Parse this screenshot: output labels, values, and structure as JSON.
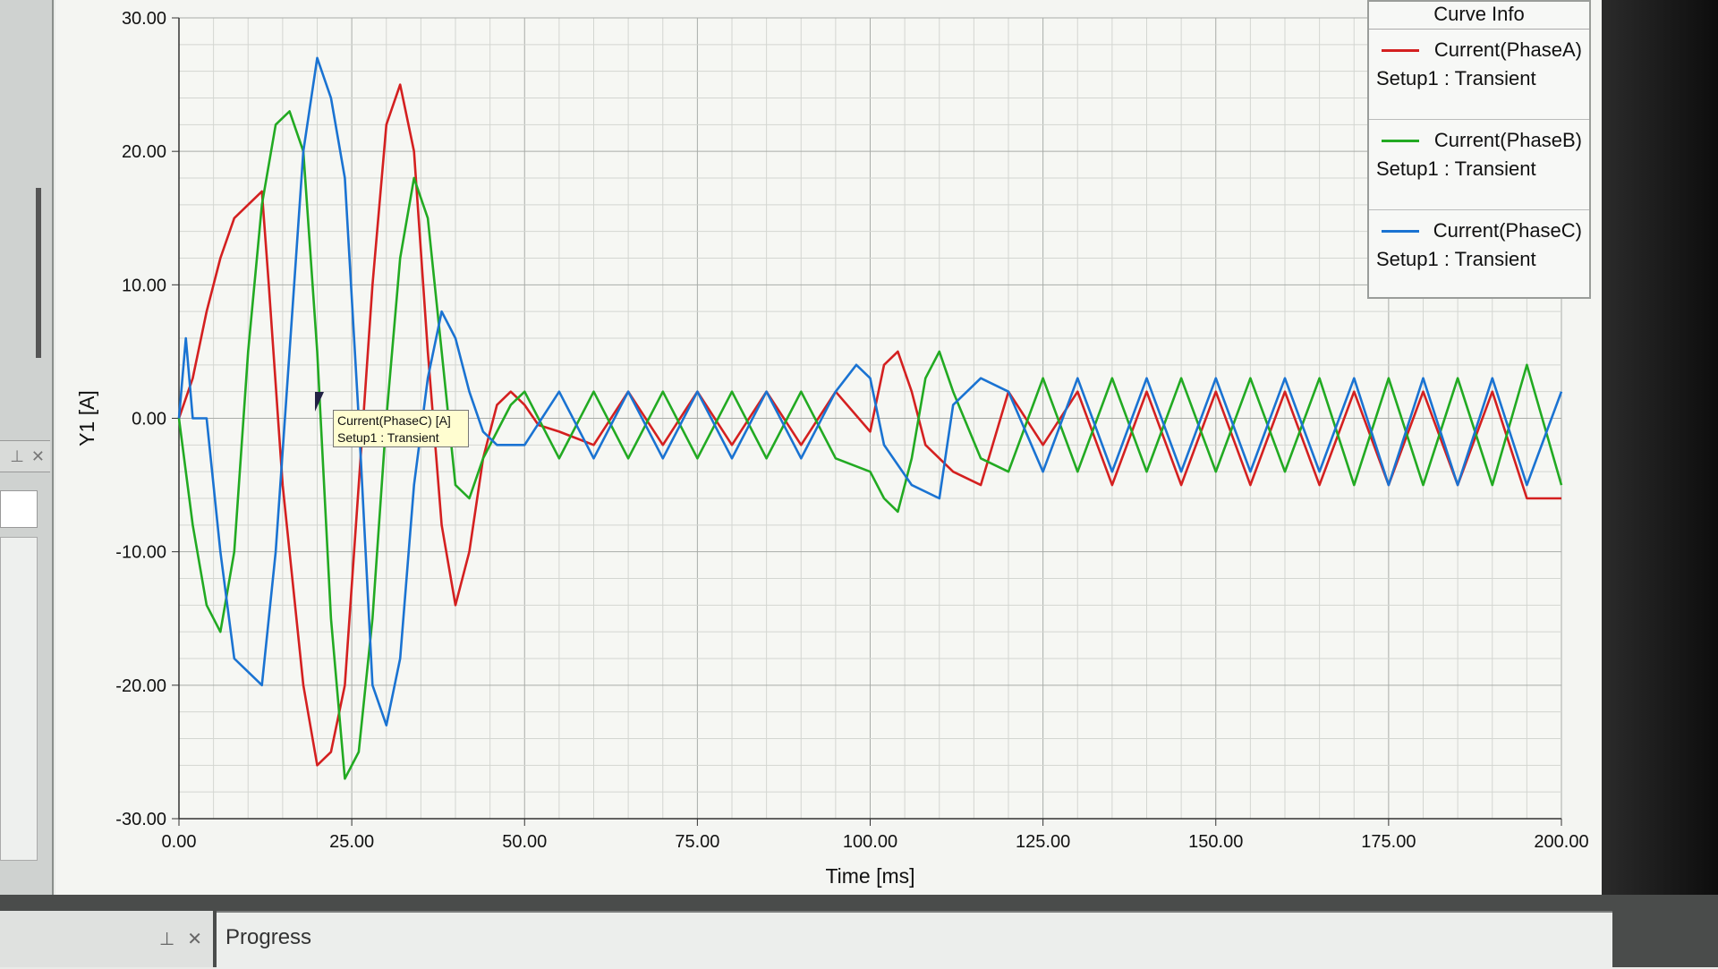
{
  "panel": {
    "progress_label": "Progress",
    "pin_icon": "pin-icon",
    "close_icon": "close-icon"
  },
  "chart_data": {
    "type": "line",
    "title": "",
    "xlabel": "Time [ms]",
    "ylabel": "Y1 [A]",
    "xlim": [
      0,
      200
    ],
    "ylim": [
      -30,
      30
    ],
    "x_ticks": [
      "0.00",
      "25.00",
      "50.00",
      "75.00",
      "100.00",
      "125.00",
      "150.00",
      "175.00",
      "200.00"
    ],
    "y_ticks": [
      "30.00",
      "20.00",
      "10.00",
      "0.00",
      "-10.00",
      "-20.00",
      "-30.00"
    ],
    "grid": true,
    "legend_position": "top-right",
    "legend_title": "Curve Info",
    "series": [
      {
        "name": "Current(PhaseA)",
        "subtitle": "Setup1 : Transient",
        "color": "#d42020",
        "points": [
          [
            0,
            0
          ],
          [
            2,
            3
          ],
          [
            4,
            8
          ],
          [
            6,
            12
          ],
          [
            8,
            15
          ],
          [
            10,
            16
          ],
          [
            12,
            17
          ],
          [
            13,
            10
          ],
          [
            15,
            -5
          ],
          [
            18,
            -20
          ],
          [
            20,
            -26
          ],
          [
            22,
            -25
          ],
          [
            24,
            -20
          ],
          [
            26,
            -5
          ],
          [
            28,
            10
          ],
          [
            30,
            22
          ],
          [
            32,
            25
          ],
          [
            34,
            20
          ],
          [
            36,
            5
          ],
          [
            38,
            -8
          ],
          [
            40,
            -14
          ],
          [
            42,
            -10
          ],
          [
            44,
            -3
          ],
          [
            46,
            1
          ],
          [
            48,
            2
          ],
          [
            50,
            1
          ],
          [
            52,
            -0.5
          ],
          [
            55,
            -1
          ],
          [
            60,
            -2
          ],
          [
            65,
            2
          ],
          [
            70,
            -2
          ],
          [
            75,
            2
          ],
          [
            80,
            -2
          ],
          [
            85,
            2
          ],
          [
            90,
            -2
          ],
          [
            95,
            2
          ],
          [
            100,
            -1
          ],
          [
            102,
            4
          ],
          [
            104,
            5
          ],
          [
            106,
            2
          ],
          [
            108,
            -2
          ],
          [
            112,
            -4
          ],
          [
            116,
            -5
          ],
          [
            120,
            2
          ],
          [
            125,
            -2
          ],
          [
            130,
            2
          ],
          [
            135,
            -5
          ],
          [
            140,
            2
          ],
          [
            145,
            -5
          ],
          [
            150,
            2
          ],
          [
            155,
            -5
          ],
          [
            160,
            2
          ],
          [
            165,
            -5
          ],
          [
            170,
            2
          ],
          [
            175,
            -5
          ],
          [
            180,
            2
          ],
          [
            185,
            -5
          ],
          [
            190,
            2
          ],
          [
            195,
            -6
          ],
          [
            200,
            -6
          ]
        ]
      },
      {
        "name": "Current(PhaseB)",
        "subtitle": "Setup1 : Transient",
        "color": "#22aa22",
        "points": [
          [
            0,
            0
          ],
          [
            2,
            -8
          ],
          [
            4,
            -14
          ],
          [
            6,
            -16
          ],
          [
            8,
            -10
          ],
          [
            10,
            5
          ],
          [
            12,
            16
          ],
          [
            14,
            22
          ],
          [
            16,
            23
          ],
          [
            18,
            20
          ],
          [
            20,
            5
          ],
          [
            22,
            -15
          ],
          [
            24,
            -27
          ],
          [
            26,
            -25
          ],
          [
            28,
            -15
          ],
          [
            30,
            0
          ],
          [
            32,
            12
          ],
          [
            34,
            18
          ],
          [
            36,
            15
          ],
          [
            38,
            5
          ],
          [
            40,
            -5
          ],
          [
            42,
            -6
          ],
          [
            44,
            -3
          ],
          [
            46,
            -1
          ],
          [
            48,
            1
          ],
          [
            50,
            2
          ],
          [
            55,
            -3
          ],
          [
            60,
            2
          ],
          [
            65,
            -3
          ],
          [
            70,
            2
          ],
          [
            75,
            -3
          ],
          [
            80,
            2
          ],
          [
            85,
            -3
          ],
          [
            90,
            2
          ],
          [
            95,
            -3
          ],
          [
            100,
            -4
          ],
          [
            102,
            -6
          ],
          [
            104,
            -7
          ],
          [
            106,
            -3
          ],
          [
            108,
            3
          ],
          [
            110,
            5
          ],
          [
            112,
            2
          ],
          [
            116,
            -3
          ],
          [
            120,
            -4
          ],
          [
            125,
            3
          ],
          [
            130,
            -4
          ],
          [
            135,
            3
          ],
          [
            140,
            -4
          ],
          [
            145,
            3
          ],
          [
            150,
            -4
          ],
          [
            155,
            3
          ],
          [
            160,
            -4
          ],
          [
            165,
            3
          ],
          [
            170,
            -5
          ],
          [
            175,
            3
          ],
          [
            180,
            -5
          ],
          [
            185,
            3
          ],
          [
            190,
            -5
          ],
          [
            195,
            4
          ],
          [
            200,
            -5
          ]
        ]
      },
      {
        "name": "Current(PhaseC)",
        "subtitle": "Setup1 : Transient",
        "color": "#1a73d2",
        "points": [
          [
            0,
            0
          ],
          [
            1,
            6
          ],
          [
            2,
            0
          ],
          [
            4,
            0
          ],
          [
            6,
            -10
          ],
          [
            8,
            -18
          ],
          [
            10,
            -19
          ],
          [
            12,
            -20
          ],
          [
            14,
            -10
          ],
          [
            16,
            5
          ],
          [
            18,
            20
          ],
          [
            20,
            27
          ],
          [
            22,
            24
          ],
          [
            24,
            18
          ],
          [
            26,
            0
          ],
          [
            28,
            -20
          ],
          [
            30,
            -23
          ],
          [
            32,
            -18
          ],
          [
            34,
            -5
          ],
          [
            36,
            3
          ],
          [
            38,
            8
          ],
          [
            40,
            6
          ],
          [
            42,
            2
          ],
          [
            44,
            -1
          ],
          [
            46,
            -2
          ],
          [
            48,
            -2
          ],
          [
            50,
            -2
          ],
          [
            55,
            2
          ],
          [
            60,
            -3
          ],
          [
            65,
            2
          ],
          [
            70,
            -3
          ],
          [
            75,
            2
          ],
          [
            80,
            -3
          ],
          [
            85,
            2
          ],
          [
            90,
            -3
          ],
          [
            95,
            2
          ],
          [
            98,
            4
          ],
          [
            100,
            3
          ],
          [
            102,
            -2
          ],
          [
            106,
            -5
          ],
          [
            110,
            -6
          ],
          [
            112,
            1
          ],
          [
            116,
            3
          ],
          [
            120,
            2
          ],
          [
            125,
            -4
          ],
          [
            130,
            3
          ],
          [
            135,
            -4
          ],
          [
            140,
            3
          ],
          [
            145,
            -4
          ],
          [
            150,
            3
          ],
          [
            155,
            -4
          ],
          [
            160,
            3
          ],
          [
            165,
            -4
          ],
          [
            170,
            3
          ],
          [
            175,
            -5
          ],
          [
            180,
            3
          ],
          [
            185,
            -5
          ],
          [
            190,
            3
          ],
          [
            195,
            -5
          ],
          [
            200,
            2
          ]
        ]
      }
    ]
  },
  "tooltip": {
    "line1": "Current(PhaseC) [A]",
    "line2": "Setup1 : Transient"
  }
}
